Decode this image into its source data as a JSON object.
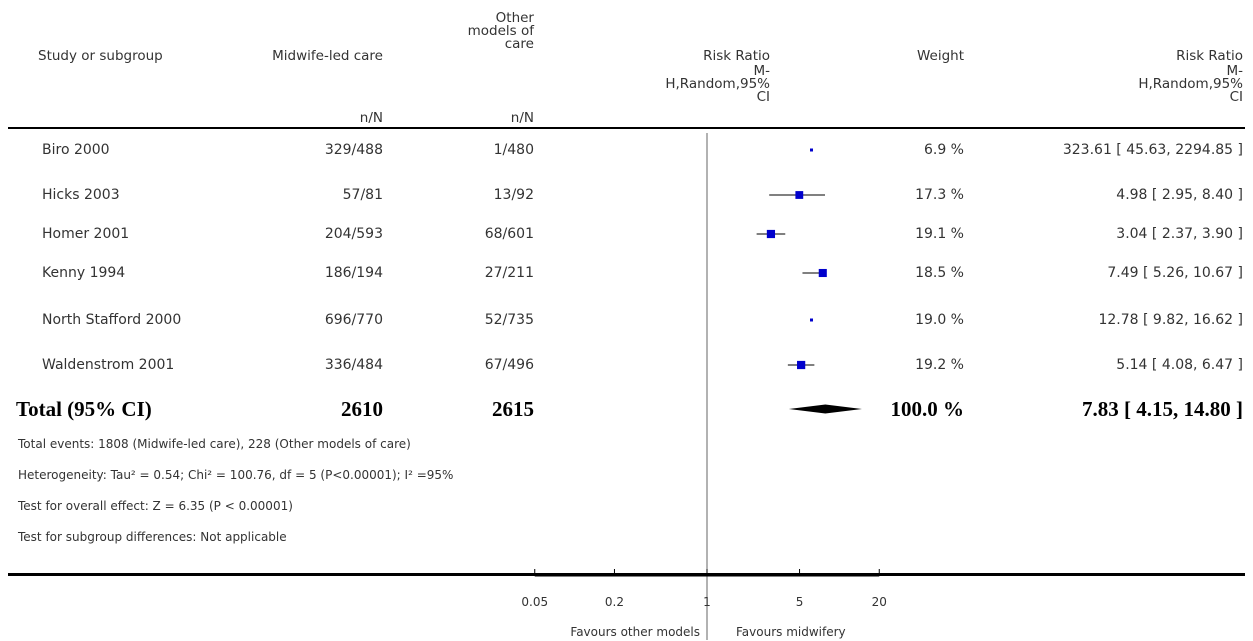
{
  "headers": {
    "study": "Study or subgroup",
    "group1": "Midwife-led care",
    "group2_lines": [
      "Other",
      "models of",
      "care"
    ],
    "n_n": "n/N",
    "plot_lines": [
      "Risk Ratio",
      "M-",
      "H,Random,95%",
      "CI"
    ],
    "weight": "Weight",
    "rr_lines": [
      "Risk Ratio",
      "M-",
      "H,Random,95%",
      "CI"
    ]
  },
  "rows": [
    {
      "study": "Biro 2000",
      "g1": "329/488",
      "g2": "1/480",
      "weight": "6.9 %",
      "ci": "323.61 [ 45.63, 2294.85 ]"
    },
    {
      "study": "Hicks 2003",
      "g1": "57/81",
      "g2": "13/92",
      "weight": "17.3 %",
      "ci": "4.98 [ 2.95, 8.40 ]"
    },
    {
      "study": "Homer 2001",
      "g1": "204/593",
      "g2": "68/601",
      "weight": "19.1 %",
      "ci": "3.04 [ 2.37, 3.90 ]"
    },
    {
      "study": "Kenny 1994",
      "g1": "186/194",
      "g2": "27/211",
      "weight": "18.5 %",
      "ci": "7.49 [ 5.26, 10.67 ]"
    },
    {
      "study": "North Stafford 2000",
      "g1": "696/770",
      "g2": "52/735",
      "weight": "19.0 %",
      "ci": "12.78 [ 9.82, 16.62 ]"
    },
    {
      "study": "Waldenstrom 2001",
      "g1": "336/484",
      "g2": "67/496",
      "weight": "19.2 %",
      "ci": "5.14 [ 4.08, 6.47 ]"
    }
  ],
  "total": {
    "label": "Total (95% CI)",
    "g1": "2610",
    "g2": "2615",
    "weight": "100.0 %",
    "ci": "7.83 [ 4.15, 14.80 ]"
  },
  "notes": [
    "Total events: 1808 (Midwife-led care), 228 (Other models of care)",
    "Heterogeneity: Tau² = 0.54; Chi² = 100.76, df = 5 (P<0.00001); I² =95%",
    "Test for overall effect: Z = 6.35 (P < 0.00001)",
    "Test for subgroup differences: Not applicable"
  ],
  "axis": {
    "ticks": [
      "0.05",
      "0.2",
      "1",
      "5",
      "20"
    ],
    "favours_left": "Favours other models",
    "favours_right": "Favours midwifery"
  },
  "chart_data": {
    "type": "forest",
    "scale": "log",
    "xlim": [
      0.05,
      20
    ],
    "tick_values": [
      0.05,
      0.2,
      1,
      5,
      20
    ],
    "null_value": 1,
    "marker_color": "#0000cc",
    "studies": [
      {
        "study": "Biro 2000",
        "rr": 323.61,
        "lower": 45.63,
        "upper": 2294.85,
        "weight": 6.9
      },
      {
        "study": "Hicks 2003",
        "rr": 4.98,
        "lower": 2.95,
        "upper": 8.4,
        "weight": 17.3
      },
      {
        "study": "Homer 2001",
        "rr": 3.04,
        "lower": 2.37,
        "upper": 3.9,
        "weight": 19.1
      },
      {
        "study": "Kenny 1994",
        "rr": 7.49,
        "lower": 5.26,
        "upper": 10.67,
        "weight": 18.5
      },
      {
        "study": "North Stafford 2000",
        "rr": 12.78,
        "lower": 9.82,
        "upper": 16.62,
        "weight": 19.0
      },
      {
        "study": "Waldenstrom 2001",
        "rr": 5.14,
        "lower": 4.08,
        "upper": 6.47,
        "weight": 19.2
      }
    ],
    "pooled": {
      "rr": 7.83,
      "lower": 4.15,
      "upper": 14.8,
      "weight": 100.0
    }
  }
}
